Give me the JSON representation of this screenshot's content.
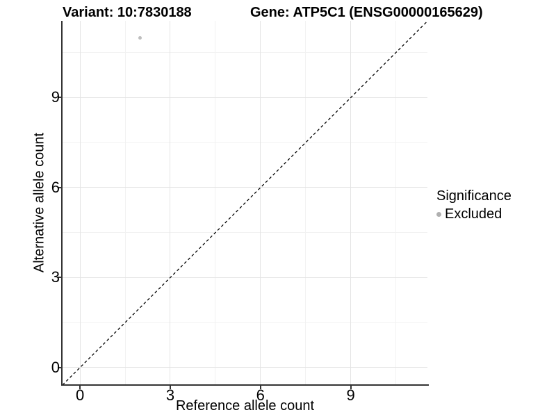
{
  "chart_data": {
    "type": "scatter",
    "title_left": "Variant: 10:7830188",
    "title_right": "Gene: ATP5C1 (ENSG00000165629)",
    "xlabel": "Reference allele count",
    "ylabel": "Alternative allele count",
    "xlim": [
      -0.58,
      11.55
    ],
    "ylim": [
      -0.56,
      11.56
    ],
    "x_major_ticks": [
      0,
      3,
      6,
      9
    ],
    "y_major_ticks": [
      0,
      3,
      6,
      9
    ],
    "x_minor_ticks": [
      1.5,
      4.5,
      7.5,
      10.5
    ],
    "y_minor_ticks": [
      1.5,
      4.5,
      7.5,
      10.5
    ],
    "grid": true,
    "points": [
      {
        "x": 2,
        "y": 11,
        "series": "Excluded"
      }
    ],
    "reference_line": {
      "slope": 1,
      "intercept": 0,
      "style": "dashed",
      "color": "#000000"
    },
    "legend": {
      "title": "Significance",
      "position": "right",
      "entries": [
        {
          "label": "Excluded",
          "color": "#b0b0b0",
          "marker": "circle"
        }
      ]
    },
    "colors": {
      "point": "#bebebe",
      "grid_major": "#e4e4e4",
      "grid_minor": "#f2f2f2",
      "axis_line": "#333333",
      "background": "#ffffff"
    }
  }
}
